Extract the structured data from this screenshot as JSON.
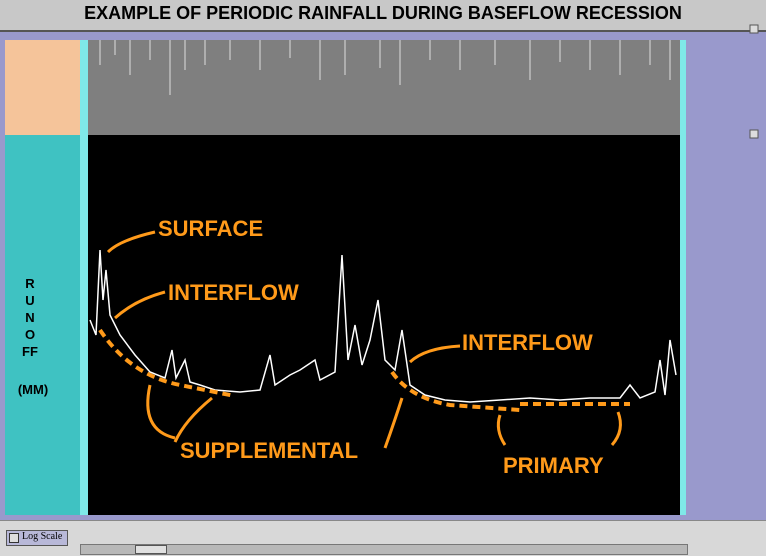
{
  "title": "EXAMPLE OF PERIODIC RAINFALL DURING BASEFLOW RECESSION",
  "side_label": "RUNOFF",
  "unit": "(MM)",
  "annotations": [
    "SURFACE",
    "INTERFLOW",
    "INTERFLOW",
    "SUPPLEMENTAL",
    "PRIMARY"
  ],
  "checkbox_label": "Log Scale"
}
